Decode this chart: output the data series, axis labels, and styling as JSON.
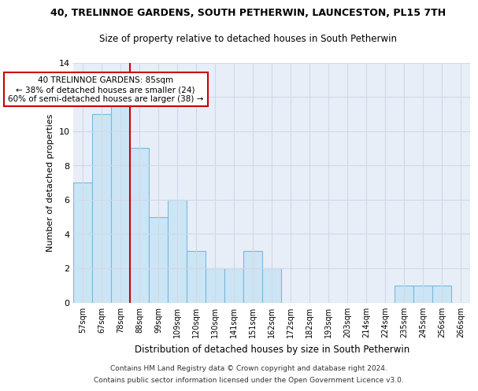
{
  "title": "40, TRELINNOE GARDENS, SOUTH PETHERWIN, LAUNCESTON, PL15 7TH",
  "subtitle": "Size of property relative to detached houses in South Petherwin",
  "xlabel": "Distribution of detached houses by size in South Petherwin",
  "ylabel": "Number of detached properties",
  "bar_labels": [
    "57sqm",
    "67sqm",
    "78sqm",
    "88sqm",
    "99sqm",
    "109sqm",
    "120sqm",
    "130sqm",
    "141sqm",
    "151sqm",
    "162sqm",
    "172sqm",
    "182sqm",
    "193sqm",
    "203sqm",
    "214sqm",
    "224sqm",
    "235sqm",
    "245sqm",
    "256sqm",
    "266sqm"
  ],
  "bar_values": [
    7,
    11,
    12,
    9,
    5,
    6,
    3,
    2,
    2,
    3,
    2,
    0,
    0,
    0,
    0,
    0,
    0,
    1,
    1,
    1,
    0
  ],
  "bar_color": "#cce5f5",
  "bar_edge_color": "#7ab8d9",
  "vline_color": "#cc0000",
  "annotation_text": "40 TRELINNOE GARDENS: 85sqm\n← 38% of detached houses are smaller (24)\n60% of semi-detached houses are larger (38) →",
  "annotation_box_color": "white",
  "annotation_box_edge_color": "#cc0000",
  "footnote1": "Contains HM Land Registry data © Crown copyright and database right 2024.",
  "footnote2": "Contains public sector information licensed under the Open Government Licence v3.0.",
  "ylim": [
    0,
    14
  ],
  "yticks": [
    0,
    2,
    4,
    6,
    8,
    10,
    12,
    14
  ],
  "grid_color": "#d0d8e8",
  "bg_color": "#e8eef8"
}
